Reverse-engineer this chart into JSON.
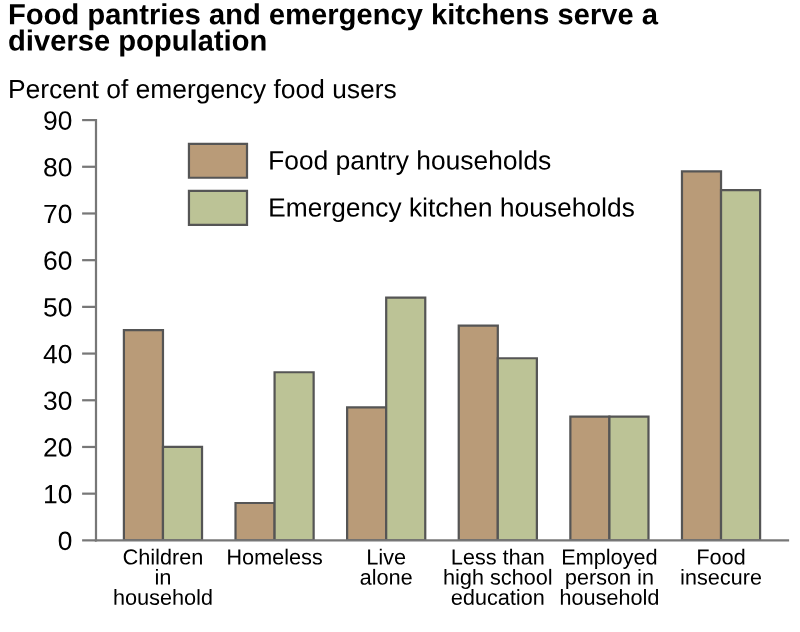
{
  "chart_data": {
    "type": "bar",
    "title": "Food pantries and emergency kitchens serve a\ndiverse population",
    "ylabel": "Percent of emergency food users",
    "categories": [
      "Children\nin\nhousehold",
      "Homeless",
      "Live\nalone",
      "Less than\nhigh school\neducation",
      "Employed\nperson in\nhousehold",
      "Food\ninsecure"
    ],
    "series": [
      {
        "name": "Food pantry households",
        "color": "#b99b78",
        "values": [
          45,
          8,
          28.5,
          46,
          26.5,
          79
        ]
      },
      {
        "name": "Emergency kitchen households",
        "color": "#bcc396",
        "values": [
          20,
          36,
          52,
          39,
          26.5,
          75
        ]
      }
    ],
    "ylim": [
      0,
      90
    ],
    "yticks": [
      0,
      10,
      20,
      30,
      40,
      50,
      60,
      70,
      80,
      90
    ],
    "grid": false,
    "legend": "top left"
  }
}
